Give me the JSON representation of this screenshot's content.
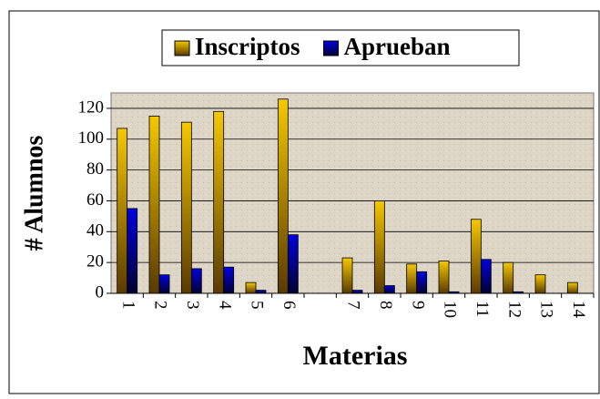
{
  "chart_data": {
    "type": "bar",
    "x_label": "Materias",
    "y_label": "# Alumnos",
    "categories": [
      "1",
      "2",
      "3",
      "4",
      "5",
      "6",
      null,
      "7",
      "8",
      "9",
      "10",
      "11",
      "12",
      "13",
      "14"
    ],
    "series": [
      {
        "name": "Inscriptos",
        "color": "#f5c800",
        "values": [
          107,
          115,
          111,
          118,
          7,
          126,
          null,
          23,
          60,
          19,
          21,
          48,
          20,
          12,
          7
        ]
      },
      {
        "name": "Aprueban",
        "color": "#0000e0",
        "values": [
          55,
          12,
          16,
          17,
          2,
          38,
          null,
          2,
          5,
          14,
          1,
          22,
          1,
          0,
          0
        ]
      }
    ],
    "ylim": [
      0,
      130
    ],
    "yticks": [
      0,
      20,
      40,
      60,
      80,
      100,
      120
    ],
    "grid": true,
    "legend": "top"
  }
}
